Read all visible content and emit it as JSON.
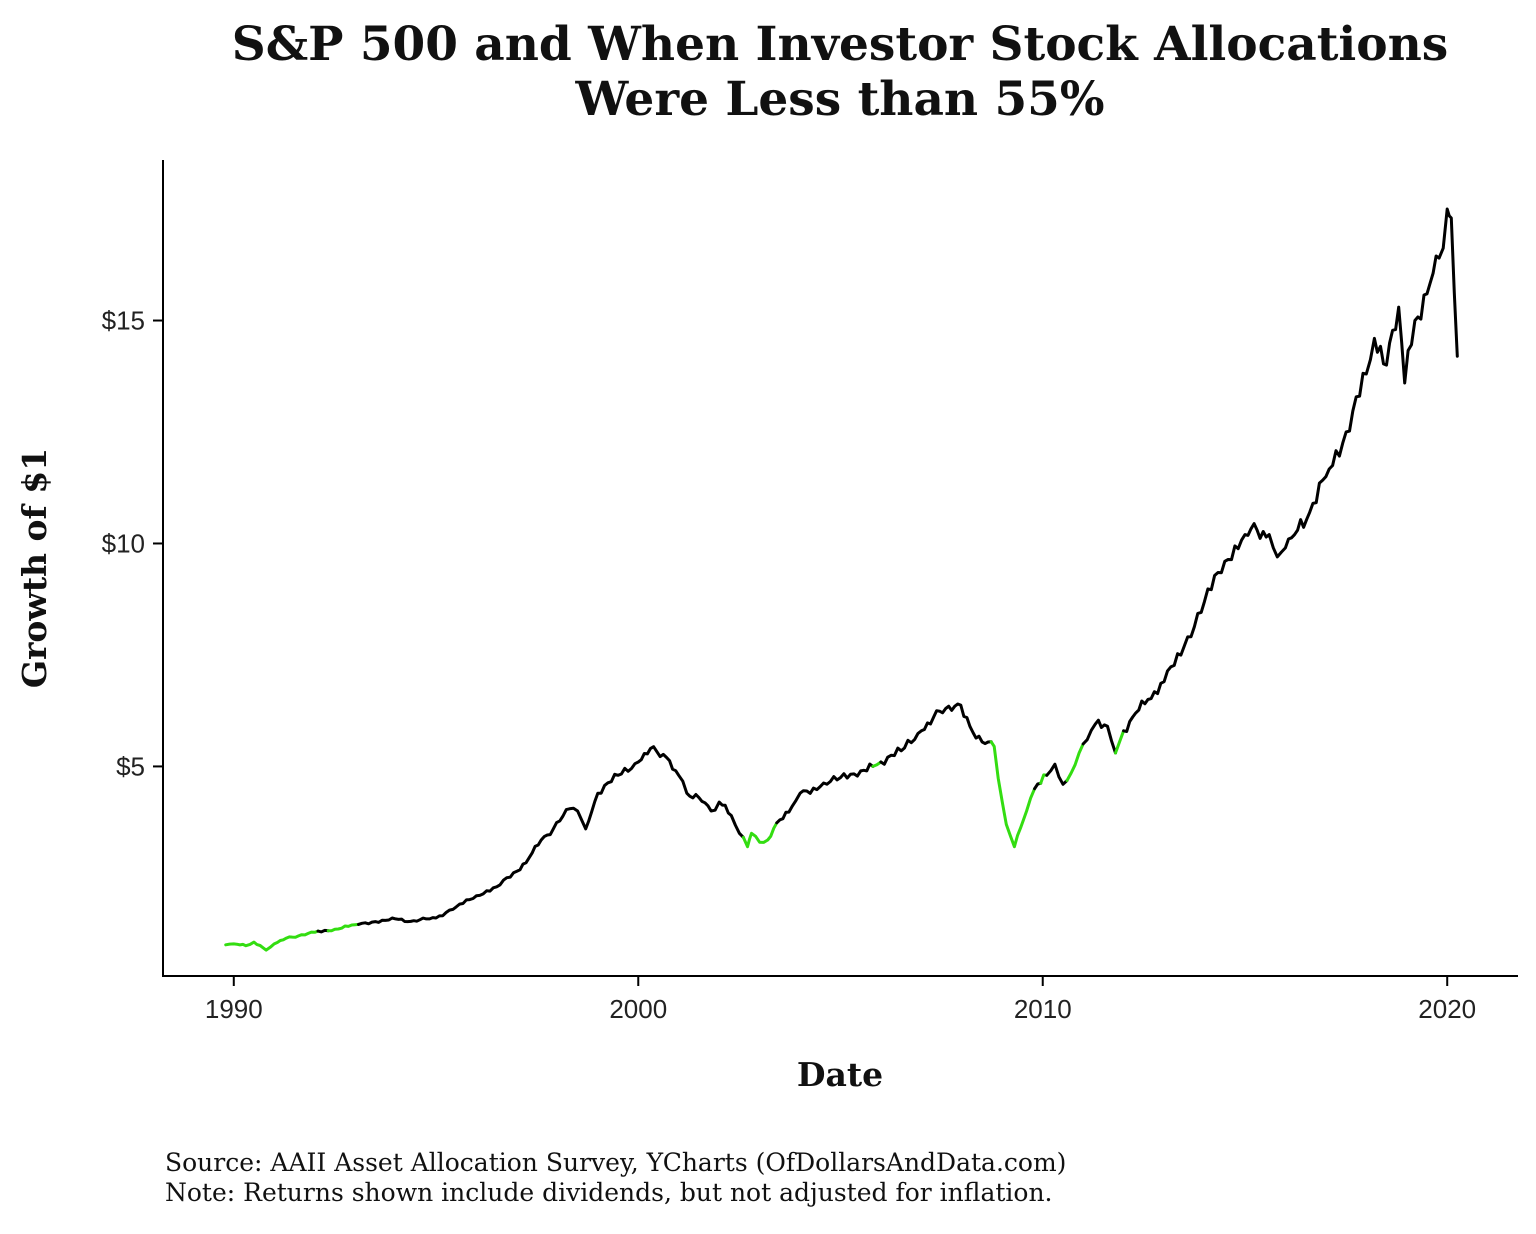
{
  "chart_data": {
    "type": "line",
    "title_lines": [
      "S&P 500 and When Investor Stock Allocations",
      "Were Less than 55%"
    ],
    "xlabel": "Date",
    "ylabel": "Growth of $1",
    "xlim": [
      1988.25,
      2021.75
    ],
    "ylim": [
      0.3,
      18.6
    ],
    "xticks": [
      1990,
      2000,
      2010,
      2020
    ],
    "xtick_labels": [
      "1990",
      "2000",
      "2010",
      "2020"
    ],
    "yticks": [
      5,
      10,
      15
    ],
    "ytick_labels": [
      "$5",
      "$10",
      "$15"
    ],
    "grid": false,
    "legend": "none",
    "colors": {
      "normal": "#000000",
      "highlight": "#33dd11"
    },
    "series": [
      {
        "name": "S&P 500 growth of $1",
        "x": [
          1989.8,
          1990.0,
          1990.3,
          1990.5,
          1990.8,
          1991.0,
          1991.3,
          1991.6,
          1992.0,
          1992.5,
          1993.0,
          1993.5,
          1994.0,
          1994.3,
          1994.6,
          1995.0,
          1995.5,
          1996.0,
          1996.5,
          1997.0,
          1997.3,
          1997.6,
          1997.9,
          1998.3,
          1998.5,
          1998.7,
          1999.0,
          1999.5,
          2000.0,
          2000.3,
          2000.7,
          2001.0,
          2001.2,
          2001.5,
          2001.8,
          2002.0,
          2002.3,
          2002.5,
          2002.7,
          2002.8,
          2003.0,
          2003.2,
          2003.5,
          2003.8,
          2004.0,
          2004.5,
          2005.0,
          2005.5,
          2005.8,
          2006.0,
          2006.5,
          2007.0,
          2007.3,
          2007.6,
          2007.9,
          2008.2,
          2008.5,
          2008.8,
          2009.0,
          2009.1,
          2009.3,
          2009.6,
          2009.8,
          2010.1,
          2010.3,
          2010.5,
          2010.7,
          2010.9,
          2011.1,
          2011.3,
          2011.6,
          2011.8,
          2012.0,
          2012.3,
          2012.6,
          2013.0,
          2013.5,
          2014.0,
          2014.5,
          2015.0,
          2015.3,
          2015.6,
          2015.8,
          2016.0,
          2016.3,
          2016.6,
          2017.0,
          2017.5,
          2018.0,
          2018.2,
          2018.5,
          2018.8,
          2018.95,
          2019.2,
          2019.5,
          2019.8,
          2020.0,
          2020.1,
          2020.25
        ],
        "y": [
          1.0,
          1.02,
          0.98,
          1.06,
          0.88,
          1.02,
          1.15,
          1.2,
          1.28,
          1.35,
          1.45,
          1.52,
          1.58,
          1.52,
          1.56,
          1.6,
          1.85,
          2.1,
          2.3,
          2.65,
          2.95,
          3.35,
          3.6,
          4.05,
          4.0,
          3.6,
          4.4,
          4.8,
          5.1,
          5.4,
          5.2,
          4.8,
          4.4,
          4.3,
          4.0,
          4.2,
          3.9,
          3.5,
          3.2,
          3.5,
          3.3,
          3.35,
          3.8,
          4.1,
          4.4,
          4.55,
          4.75,
          4.9,
          5.0,
          5.1,
          5.35,
          5.8,
          6.1,
          6.3,
          6.4,
          5.9,
          5.55,
          5.45,
          4.2,
          3.7,
          3.2,
          4.0,
          4.5,
          4.8,
          5.05,
          4.6,
          4.85,
          5.3,
          5.6,
          5.95,
          5.9,
          5.3,
          5.8,
          6.2,
          6.5,
          6.9,
          7.7,
          8.7,
          9.6,
          10.2,
          10.3,
          10.2,
          9.7,
          9.9,
          10.3,
          10.7,
          11.5,
          12.5,
          13.8,
          14.6,
          14.0,
          15.3,
          13.6,
          15.0,
          15.6,
          16.4,
          17.5,
          17.3,
          14.2
        ],
        "highlight_ranges": [
          [
            1989.8,
            1992.0
          ],
          [
            1992.3,
            1993.0
          ],
          [
            2002.6,
            2003.4
          ],
          [
            2005.8,
            2005.9
          ],
          [
            2008.7,
            2009.75
          ],
          [
            2009.9,
            2010.05
          ],
          [
            2010.55,
            2010.95
          ],
          [
            2011.8,
            2011.95
          ]
        ]
      }
    ],
    "caption_lines": [
      "Source: AAII Asset Allocation Survey, YCharts (OfDollarsAndData.com)",
      "Note: Returns shown include dividends, but not adjusted for inflation."
    ]
  }
}
